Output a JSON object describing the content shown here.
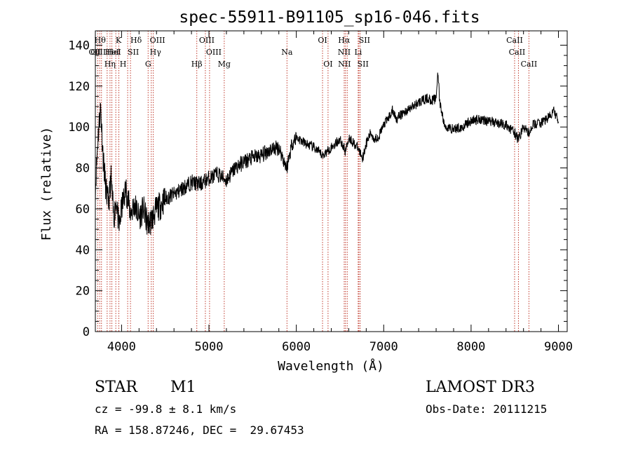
{
  "chart_data": {
    "type": "line",
    "title": "spec-55911-B91105_sp16-046.fits",
    "xlabel": "Wavelength (Å)",
    "ylabel": "Flux (relative)",
    "xlim": [
      3700,
      9100
    ],
    "ylim": [
      0,
      147
    ],
    "xticks": [
      4000,
      5000,
      6000,
      7000,
      8000,
      9000
    ],
    "yticks": [
      0,
      20,
      40,
      60,
      80,
      100,
      120,
      140
    ],
    "line_color": "#000000",
    "marker_color": "#c0392b",
    "series": [
      {
        "name": "flux",
        "x": [
          3700,
          3730,
          3760,
          3790,
          3820,
          3850,
          3880,
          3910,
          3940,
          3970,
          4000,
          4050,
          4100,
          4150,
          4200,
          4250,
          4300,
          4350,
          4400,
          4450,
          4500,
          4600,
          4700,
          4800,
          4900,
          5000,
          5100,
          5200,
          5300,
          5400,
          5500,
          5600,
          5700,
          5800,
          5890,
          5950,
          6000,
          6100,
          6200,
          6300,
          6400,
          6500,
          6563,
          6600,
          6700,
          6760,
          6800,
          6850,
          6900,
          6950,
          7000,
          7050,
          7100,
          7150,
          7200,
          7300,
          7400,
          7500,
          7550,
          7600,
          7620,
          7640,
          7700,
          7800,
          7900,
          8000,
          8100,
          8200,
          8300,
          8400,
          8500,
          8542,
          8600,
          8662,
          8700,
          8800,
          8900,
          8950,
          9000
        ],
        "y": [
          70,
          95,
          110,
          85,
          70,
          62,
          75,
          55,
          65,
          50,
          60,
          70,
          58,
          62,
          56,
          60,
          52,
          55,
          60,
          62,
          65,
          67,
          70,
          73,
          72,
          75,
          77,
          74,
          80,
          83,
          85,
          86,
          89,
          90,
          80,
          92,
          95,
          92,
          90,
          86,
          90,
          94,
          88,
          95,
          90,
          85,
          92,
          97,
          94,
          96,
          101,
          104,
          108,
          104,
          106,
          109,
          112,
          114,
          113,
          114,
          128,
          112,
          100,
          99,
          100,
          103,
          104,
          103,
          102,
          101,
          97,
          94,
          100,
          97,
          101,
          102,
          105,
          108,
          102
        ]
      }
    ],
    "lines": [
      {
        "wl": 3727,
        "label": "OII"
      },
      {
        "wl": 3750,
        "label": "OIII"
      },
      {
        "wl": 3770,
        "label": "Hθ"
      },
      {
        "wl": 3835,
        "label": "Hη"
      },
      {
        "wl": 3868,
        "label": "HeI"
      },
      {
        "wl": 3889,
        "label": "HeI"
      },
      {
        "wl": 3934,
        "label": "K"
      },
      {
        "wl": 3969,
        "label": "H"
      },
      {
        "wl": 4070,
        "label": "SII"
      },
      {
        "wl": 4102,
        "label": "Hδ"
      },
      {
        "wl": 4304,
        "label": "G"
      },
      {
        "wl": 4340,
        "label": "Hγ"
      },
      {
        "wl": 4363,
        "label": "OIII"
      },
      {
        "wl": 4861,
        "label": "Hβ"
      },
      {
        "wl": 4959,
        "label": "OIII"
      },
      {
        "wl": 5007,
        "label": "OIII"
      },
      {
        "wl": 5175,
        "label": "Mg"
      },
      {
        "wl": 5893,
        "label": "Na"
      },
      {
        "wl": 6300,
        "label": "OI"
      },
      {
        "wl": 6363,
        "label": "OI"
      },
      {
        "wl": 6548,
        "label": "NII"
      },
      {
        "wl": 6563,
        "label": "Hα"
      },
      {
        "wl": 6583,
        "label": "NII"
      },
      {
        "wl": 6708,
        "label": "Li"
      },
      {
        "wl": 6716,
        "label": "SII"
      },
      {
        "wl": 6731,
        "label": "SII"
      },
      {
        "wl": 8498,
        "label": "CaII"
      },
      {
        "wl": 8542,
        "label": "CaII"
      },
      {
        "wl": 8662,
        "label": "CaII"
      }
    ]
  },
  "info": {
    "object_class": "STAR",
    "subclass": "M1",
    "survey": "LAMOST DR3",
    "cz": "cz = -99.8 ± 8.1 km/s",
    "obs_date": "Obs-Date: 20111215",
    "coords": "RA = 158.87246, DEC =  29.67453"
  }
}
